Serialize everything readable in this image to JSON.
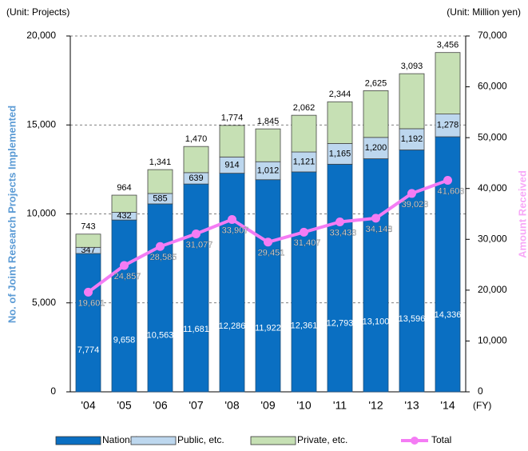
{
  "chart_data": {
    "type": "bar",
    "unit_left": "(Unit: Projects)",
    "unit_right": "(Unit: Million yen)",
    "ylabel": "No. of Joint Research Projects Implemented",
    "y2label": "Amount Received",
    "xunit": "(FY)",
    "categories": [
      "'04",
      "'05",
      "'06",
      "'07",
      "'08",
      "'09",
      "'10",
      "'11",
      "'12",
      "'13",
      "'14"
    ],
    "stacked": true,
    "grid": true,
    "legend": "bottom",
    "ylim": [
      0,
      20000
    ],
    "yticks": [
      0,
      {
        "value": 5000,
        "label": "5,000"
      },
      {
        "value": 10000,
        "label": "10,000"
      },
      {
        "value": 15000,
        "label": "15,000"
      },
      {
        "value": 20000,
        "label": "20,000"
      }
    ],
    "y2lim": [
      0,
      70000
    ],
    "y2ticks": [
      0,
      {
        "value": 10000,
        "label": "10,000"
      },
      {
        "value": 20000,
        "label": "20,000"
      },
      {
        "value": 30000,
        "label": "30,000"
      },
      {
        "value": 40000,
        "label": "40,000"
      },
      {
        "value": 50000,
        "label": "50,000"
      },
      {
        "value": 60000,
        "label": "60,000"
      },
      {
        "value": 70000,
        "label": "70,000"
      }
    ],
    "series": [
      {
        "name": "National, etc.",
        "color": "#0a6fc2",
        "values": [
          7774,
          9658,
          10563,
          11681,
          12286,
          11922,
          12361,
          12793,
          13100,
          13596,
          14336
        ],
        "value_labels": [
          "7,774",
          "9,658",
          "10,563",
          "11,681",
          "12,286",
          "11,922",
          "12,361",
          "12,793",
          "13,100",
          "13,596",
          "14,336"
        ]
      },
      {
        "name": "Public, etc.",
        "color": "#bdd7ee",
        "values": [
          347,
          432,
          585,
          639,
          914,
          1012,
          1121,
          1165,
          1200,
          1192,
          1278
        ],
        "value_labels": [
          "347",
          "432",
          "585",
          "639",
          "914",
          "1,012",
          "1,121",
          "1,165",
          "1,200",
          "1,192",
          "1,278"
        ]
      },
      {
        "name": "Private, etc.",
        "color": "#c6e0b4",
        "values": [
          743,
          964,
          1341,
          1470,
          1774,
          1845,
          2062,
          2344,
          2625,
          3093,
          3456
        ],
        "value_labels": [
          "743",
          "964",
          "1,341",
          "1,470",
          "1,774",
          "1,845",
          "2,062",
          "2,344",
          "2,625",
          "3,093",
          "3,456"
        ]
      },
      {
        "name": "Total",
        "type": "line",
        "axis": "y2",
        "color": "#f47cf4",
        "values": [
          19601,
          24857,
          28585,
          31077,
          33907,
          29451,
          31407,
          33433,
          34148,
          39023,
          41603
        ],
        "value_labels": [
          "19,601",
          "24,857",
          "28,585",
          "31,077",
          "33,907",
          "29,451",
          "31,407",
          "33,433",
          "34,148",
          "39,023",
          "41,603"
        ]
      }
    ]
  }
}
